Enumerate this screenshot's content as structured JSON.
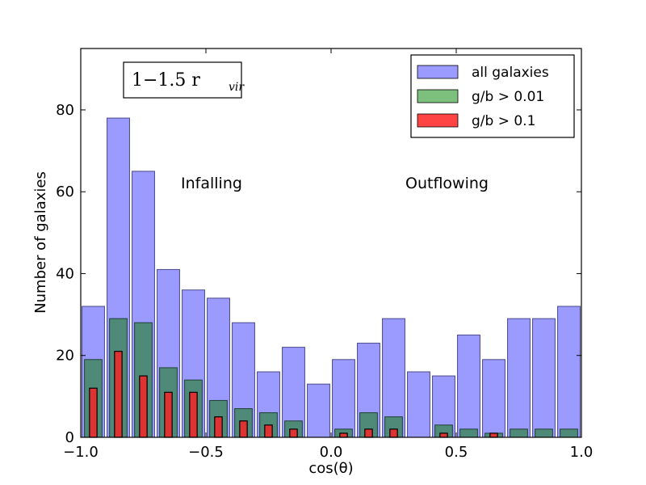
{
  "chart_data": {
    "type": "bar",
    "xlabel": "cos(θ)",
    "ylabel": "Number of galaxies",
    "xlim": [
      -1.0,
      1.0
    ],
    "ylim": [
      0,
      95
    ],
    "x_ticks": [
      "−1.0",
      "−0.5",
      "0.0",
      "0.5",
      "1.0"
    ],
    "x_tick_values": [
      -1.0,
      -0.5,
      0.0,
      0.5,
      1.0
    ],
    "y_ticks": [
      "0",
      "20",
      "40",
      "60",
      "80"
    ],
    "y_tick_values": [
      0,
      20,
      40,
      60,
      80
    ],
    "bin_width": 0.1,
    "bin_starts": [
      -1.0,
      -0.9,
      -0.8,
      -0.7,
      -0.6,
      -0.5,
      -0.4,
      -0.3,
      -0.2,
      -0.1,
      0.0,
      0.1,
      0.2,
      0.3,
      0.4,
      0.5,
      0.6,
      0.7,
      0.8,
      0.9
    ],
    "series": [
      {
        "name": "all galaxies",
        "color": "#9a9aff",
        "values": [
          32,
          78,
          65,
          41,
          36,
          34,
          28,
          16,
          22,
          13,
          19,
          23,
          29,
          16,
          15,
          25,
          19,
          29,
          29,
          32
        ]
      },
      {
        "name": "g/b > 0.01",
        "color": "#4f8a78",
        "values": [
          19,
          29,
          28,
          17,
          14,
          9,
          7,
          6,
          4,
          0,
          2,
          6,
          5,
          0,
          3,
          2,
          1,
          2,
          2,
          2
        ]
      },
      {
        "name": "g/b > 0.1",
        "color": "#dd3333",
        "values": [
          12,
          21,
          15,
          11,
          11,
          5,
          4,
          3,
          2,
          0,
          1,
          2,
          2,
          0,
          1,
          0,
          1,
          0,
          0,
          0
        ]
      }
    ],
    "legend": {
      "entries": [
        {
          "label": "all galaxies",
          "color": "#9a9aff"
        },
        {
          "label": "g/b > 0.01",
          "color": "#7dbf7d"
        },
        {
          "label": "g/b > 0.1",
          "color": "#ff4444"
        }
      ],
      "position": "top-right"
    },
    "annotations": {
      "box": "1−1.5 r",
      "box_sub": "vir",
      "infalling": "Infalling",
      "outflowing": "Outflowing"
    }
  }
}
